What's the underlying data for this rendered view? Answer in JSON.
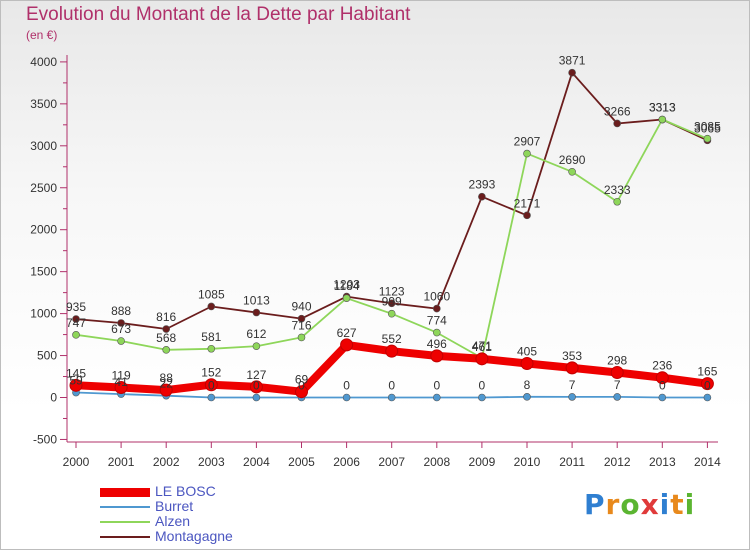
{
  "title": "Evolution du Montant de la Dette par Habitant",
  "unit": "(en €)",
  "logo": [
    "P",
    "r",
    "o",
    "x",
    "i",
    "t",
    "i"
  ],
  "chart_data": {
    "type": "line",
    "title": "Evolution du Montant de la Dette par Habitant",
    "ylabel": "(en €)",
    "xlabel": "",
    "ylim": [
      -500,
      4000
    ],
    "yticks": [
      -500,
      0,
      500,
      1000,
      1500,
      2000,
      2500,
      3000,
      3500,
      4000
    ],
    "categories": [
      "2000",
      "2001",
      "2002",
      "2003",
      "2004",
      "2005",
      "2006",
      "2007",
      "2008",
      "2009",
      "2010",
      "2011",
      "2012",
      "2013",
      "2014"
    ],
    "grid": false,
    "legend_position": "bottom-left",
    "series": [
      {
        "name": "LE BOSC",
        "color": "#ee0000",
        "values": [
          145,
          119,
          88,
          152,
          127,
          69,
          627,
          552,
          496,
          461,
          405,
          353,
          298,
          236,
          165
        ]
      },
      {
        "name": "Burret",
        "color": "#4f98d0",
        "values": [
          59,
          41,
          22,
          0,
          0,
          0,
          0,
          0,
          0,
          0,
          8,
          7,
          7,
          0,
          0
        ]
      },
      {
        "name": "Alzen",
        "color": "#8ed65a",
        "values": [
          747,
          673,
          568,
          581,
          612,
          716,
          1184,
          999,
          774,
          471,
          2907,
          2690,
          2333,
          3313,
          3085
        ]
      },
      {
        "name": "Montagagne",
        "color": "#6b1d1d",
        "values": [
          935,
          888,
          816,
          1085,
          1013,
          940,
          1203,
          1123,
          1060,
          2393,
          2171,
          3871,
          3266,
          3313,
          3065
        ]
      }
    ]
  }
}
